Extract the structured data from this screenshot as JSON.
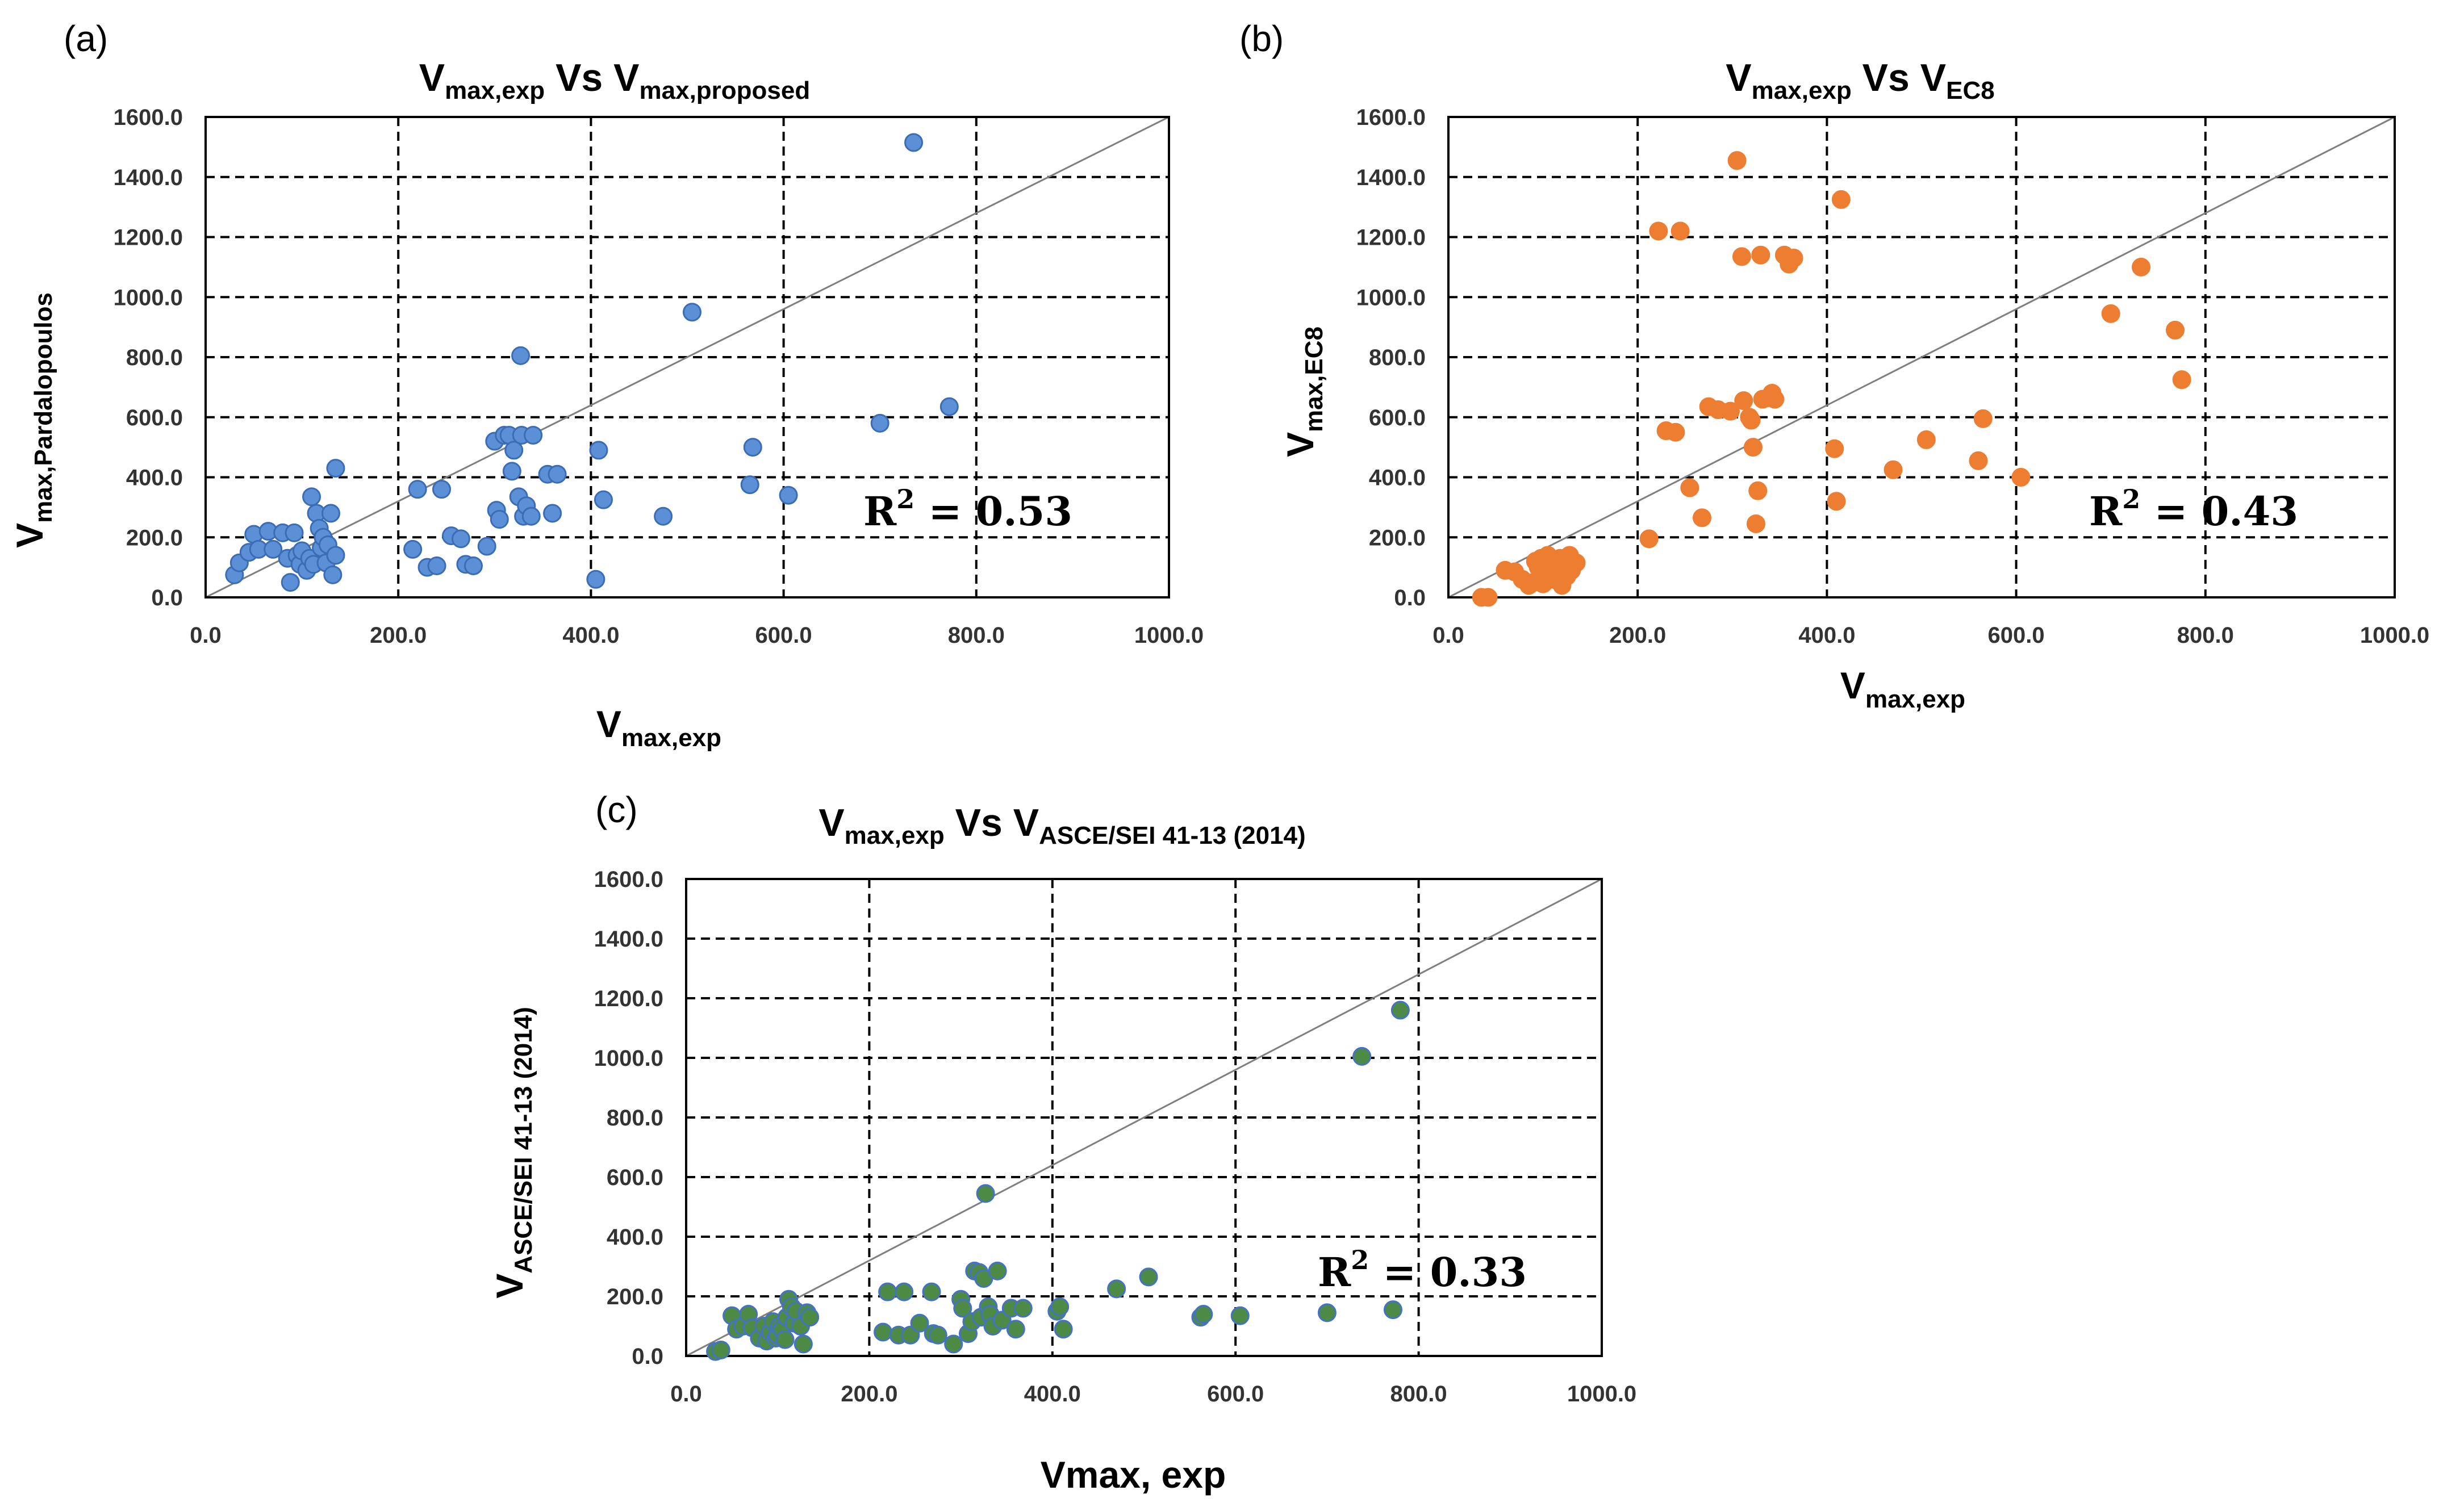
{
  "chart_data": [
    {
      "type": "scatter",
      "panel": "(a)",
      "title": {
        "main": "V",
        "main_sub": "max,exp",
        "vs": " Vs ",
        "other": "V",
        "other_sub": "max,proposed"
      },
      "xlabel": {
        "main": "V",
        "sub": "max,exp"
      },
      "ylabel": {
        "main": "V",
        "sub": "max,Pardalopoulos"
      },
      "xlim": [
        0,
        1000
      ],
      "ylim": [
        0,
        1600
      ],
      "xticks": [
        "0.0",
        "200.0",
        "400.0",
        "600.0",
        "800.0",
        "1000.0"
      ],
      "yticks": [
        "0.0",
        "200.0",
        "400.0",
        "600.0",
        "800.0",
        "1000.0",
        "1200.0",
        "1400.0",
        "1600.0"
      ],
      "r2": {
        "label": "R",
        "sup": "2",
        "value": " = 0.53"
      },
      "marker_fill": "#5b8fd6",
      "marker_stroke": "#3a6db5",
      "points": [
        [
          30,
          75
        ],
        [
          35,
          115
        ],
        [
          45,
          150
        ],
        [
          50,
          210
        ],
        [
          55,
          160
        ],
        [
          65,
          220
        ],
        [
          70,
          160
        ],
        [
          80,
          215
        ],
        [
          85,
          130
        ],
        [
          88,
          50
        ],
        [
          92,
          215
        ],
        [
          95,
          140
        ],
        [
          98,
          110
        ],
        [
          100,
          155
        ],
        [
          105,
          90
        ],
        [
          108,
          130
        ],
        [
          110,
          335
        ],
        [
          112,
          110
        ],
        [
          115,
          280
        ],
        [
          118,
          230
        ],
        [
          120,
          165
        ],
        [
          122,
          200
        ],
        [
          125,
          115
        ],
        [
          127,
          175
        ],
        [
          130,
          280
        ],
        [
          132,
          75
        ],
        [
          135,
          140
        ],
        [
          135,
          430
        ],
        [
          215,
          160
        ],
        [
          220,
          360
        ],
        [
          230,
          100
        ],
        [
          240,
          105
        ],
        [
          245,
          360
        ],
        [
          255,
          205
        ],
        [
          265,
          195
        ],
        [
          270,
          110
        ],
        [
          278,
          105
        ],
        [
          292,
          170
        ],
        [
          300,
          520
        ],
        [
          302,
          290
        ],
        [
          305,
          260
        ],
        [
          310,
          540
        ],
        [
          315,
          540
        ],
        [
          318,
          420
        ],
        [
          320,
          490
        ],
        [
          325,
          335
        ],
        [
          327,
          805
        ],
        [
          328,
          540
        ],
        [
          330,
          270
        ],
        [
          333,
          305
        ],
        [
          338,
          270
        ],
        [
          340,
          540
        ],
        [
          355,
          410
        ],
        [
          360,
          280
        ],
        [
          365,
          410
        ],
        [
          405,
          60
        ],
        [
          408,
          490
        ],
        [
          413,
          325
        ],
        [
          475,
          270
        ],
        [
          505,
          950
        ],
        [
          565,
          375
        ],
        [
          568,
          500
        ],
        [
          605,
          340
        ],
        [
          700,
          580
        ],
        [
          735,
          1515
        ],
        [
          772,
          635
        ]
      ]
    },
    {
      "type": "scatter",
      "panel": "(b)",
      "title": {
        "main": "V",
        "main_sub": "max,exp",
        "vs": " Vs ",
        "other": "V",
        "other_sub": "EC8"
      },
      "xlabel": {
        "main": "V",
        "sub": "max,exp"
      },
      "ylabel": {
        "main": "V",
        "sub": "max,EC8"
      },
      "xlim": [
        0,
        1000
      ],
      "ylim": [
        0,
        1600
      ],
      "xticks": [
        "0.0",
        "200.0",
        "400.0",
        "600.0",
        "800.0",
        "1000.0"
      ],
      "yticks": [
        "0.0",
        "200.0",
        "400.0",
        "600.0",
        "800.0",
        "1000.0",
        "1200.0",
        "1400.0",
        "1600.0"
      ],
      "r2": {
        "label": "R",
        "sup": "2",
        "value": " = 0.43"
      },
      "marker_fill": "#ed7d31",
      "marker_stroke": "#ed7d31",
      "points": [
        [
          35,
          0
        ],
        [
          42,
          0
        ],
        [
          60,
          90
        ],
        [
          70,
          85
        ],
        [
          78,
          60
        ],
        [
          85,
          40
        ],
        [
          90,
          50
        ],
        [
          92,
          120
        ],
        [
          95,
          100
        ],
        [
          98,
          130
        ],
        [
          100,
          45
        ],
        [
          102,
          110
        ],
        [
          105,
          140
        ],
        [
          108,
          75
        ],
        [
          110,
          60
        ],
        [
          112,
          120
        ],
        [
          115,
          95
        ],
        [
          118,
          130
        ],
        [
          120,
          40
        ],
        [
          122,
          100
        ],
        [
          125,
          70
        ],
        [
          128,
          140
        ],
        [
          130,
          90
        ],
        [
          135,
          115
        ],
        [
          212,
          195
        ],
        [
          222,
          1220
        ],
        [
          230,
          555
        ],
        [
          240,
          550
        ],
        [
          245,
          1220
        ],
        [
          255,
          365
        ],
        [
          268,
          265
        ],
        [
          275,
          635
        ],
        [
          285,
          625
        ],
        [
          298,
          620
        ],
        [
          305,
          1455
        ],
        [
          310,
          1135
        ],
        [
          312,
          655
        ],
        [
          318,
          600
        ],
        [
          320,
          590
        ],
        [
          322,
          500
        ],
        [
          325,
          245
        ],
        [
          327,
          355
        ],
        [
          330,
          1140
        ],
        [
          332,
          660
        ],
        [
          338,
          665
        ],
        [
          342,
          680
        ],
        [
          345,
          660
        ],
        [
          355,
          1140
        ],
        [
          360,
          1110
        ],
        [
          365,
          1130
        ],
        [
          408,
          495
        ],
        [
          410,
          320
        ],
        [
          415,
          1325
        ],
        [
          470,
          425
        ],
        [
          505,
          525
        ],
        [
          560,
          455
        ],
        [
          565,
          595
        ],
        [
          605,
          400
        ],
        [
          700,
          945
        ],
        [
          732,
          1100
        ],
        [
          768,
          890
        ],
        [
          775,
          725
        ]
      ]
    },
    {
      "type": "scatter",
      "panel": "(c)",
      "title": {
        "main": "V",
        "main_sub": "max,exp",
        "vs": " Vs ",
        "other": "V",
        "other_sub": "ASCE/SEI 41-13 (2014)"
      },
      "xlabel": {
        "main": "Vmax, exp",
        "sub": ""
      },
      "ylabel": {
        "main": "V",
        "sub": "ASCE/SEI 41-13 (2014)"
      },
      "xlim": [
        0,
        1000
      ],
      "ylim": [
        0,
        1600
      ],
      "xticks": [
        "0.0",
        "200.0",
        "400.0",
        "600.0",
        "800.0",
        "1000.0"
      ],
      "yticks": [
        "0.0",
        "200.0",
        "400.0",
        "600.0",
        "800.0",
        "1000.0",
        "1200.0",
        "1400.0",
        "1600.0"
      ],
      "r2": {
        "label": "R",
        "sup": "2",
        "value": " = 0.33"
      },
      "marker_fill": "#4c8a46",
      "marker_stroke": "#4472c4",
      "points": [
        [
          32,
          15
        ],
        [
          38,
          20
        ],
        [
          50,
          135
        ],
        [
          55,
          90
        ],
        [
          62,
          100
        ],
        [
          68,
          140
        ],
        [
          72,
          95
        ],
        [
          80,
          60
        ],
        [
          85,
          100
        ],
        [
          88,
          50
        ],
        [
          92,
          80
        ],
        [
          95,
          115
        ],
        [
          98,
          60
        ],
        [
          100,
          70
        ],
        [
          102,
          100
        ],
        [
          105,
          90
        ],
        [
          108,
          55
        ],
        [
          110,
          130
        ],
        [
          112,
          190
        ],
        [
          115,
          165
        ],
        [
          118,
          110
        ],
        [
          120,
          150
        ],
        [
          125,
          100
        ],
        [
          128,
          40
        ],
        [
          132,
          145
        ],
        [
          135,
          130
        ],
        [
          215,
          80
        ],
        [
          220,
          215
        ],
        [
          232,
          70
        ],
        [
          238,
          215
        ],
        [
          245,
          70
        ],
        [
          255,
          110
        ],
        [
          268,
          215
        ],
        [
          270,
          75
        ],
        [
          275,
          70
        ],
        [
          292,
          40
        ],
        [
          300,
          190
        ],
        [
          302,
          160
        ],
        [
          308,
          75
        ],
        [
          312,
          115
        ],
        [
          315,
          285
        ],
        [
          320,
          280
        ],
        [
          322,
          130
        ],
        [
          325,
          260
        ],
        [
          327,
          545
        ],
        [
          330,
          165
        ],
        [
          332,
          140
        ],
        [
          335,
          100
        ],
        [
          340,
          285
        ],
        [
          345,
          120
        ],
        [
          355,
          160
        ],
        [
          360,
          90
        ],
        [
          368,
          160
        ],
        [
          405,
          150
        ],
        [
          408,
          165
        ],
        [
          412,
          90
        ],
        [
          470,
          225
        ],
        [
          505,
          265
        ],
        [
          562,
          130
        ],
        [
          565,
          140
        ],
        [
          605,
          135
        ],
        [
          700,
          145
        ],
        [
          738,
          1005
        ],
        [
          772,
          155
        ],
        [
          780,
          1160
        ]
      ]
    }
  ]
}
